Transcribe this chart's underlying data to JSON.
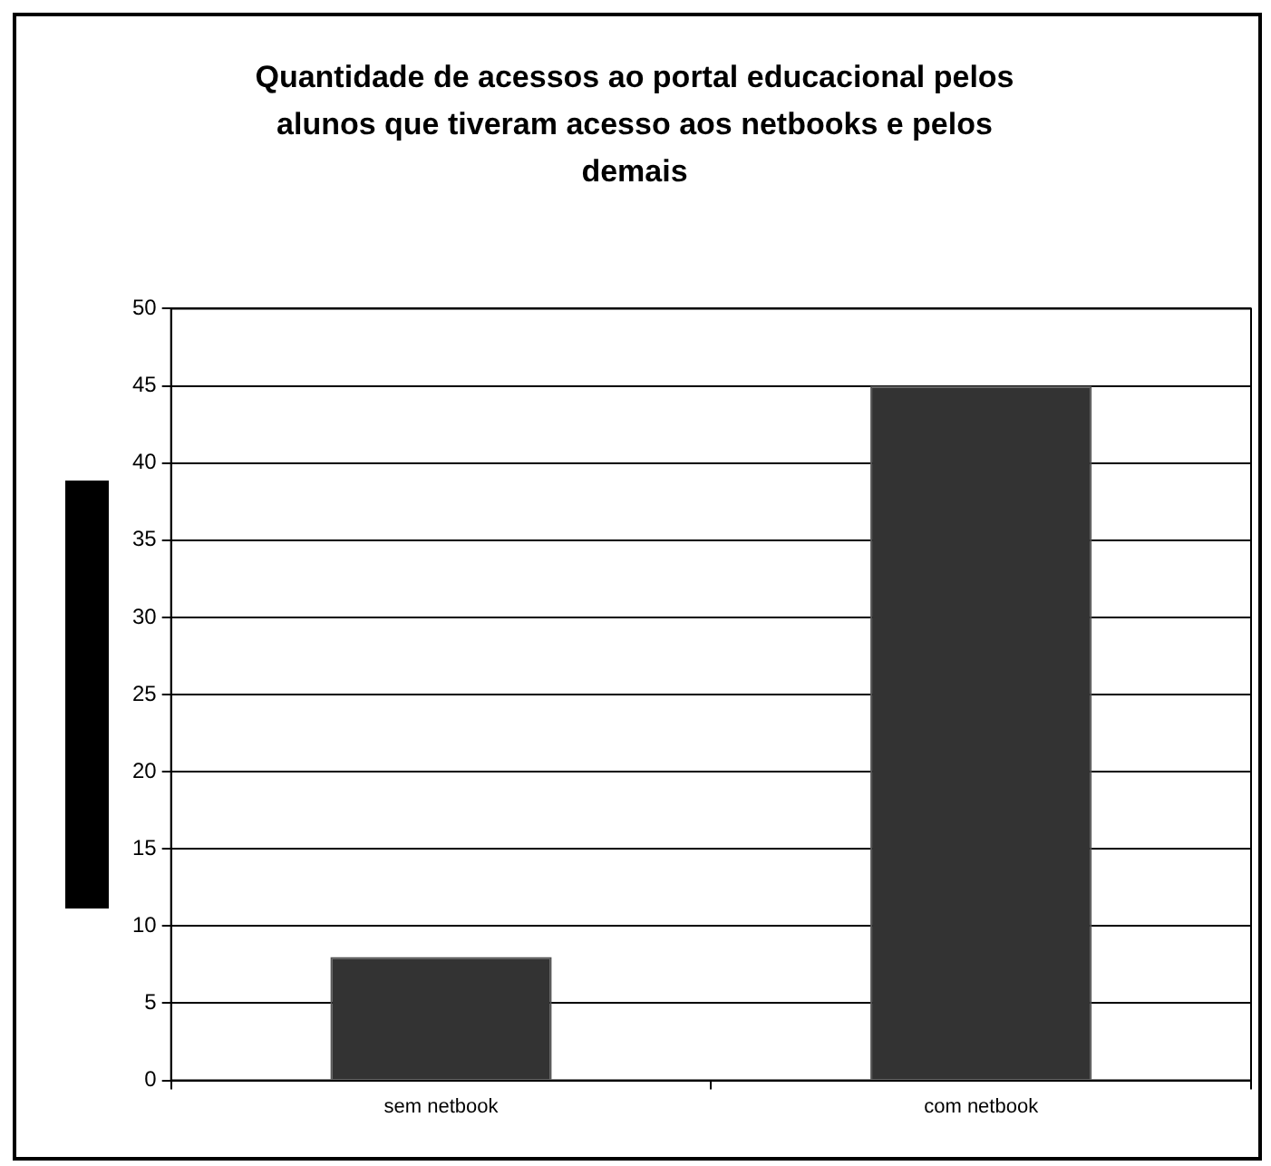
{
  "chart_data": {
    "type": "bar",
    "title": "Quantidade de acessos ao portal educacional pelos alunos que tiveram acesso aos netbooks e pelos demais",
    "categories": [
      "sem netbook",
      "com netbook"
    ],
    "values": [
      8,
      45
    ],
    "color": "#333333",
    "ylim": [
      0,
      50
    ],
    "yticks": [
      0,
      5,
      10,
      15,
      20,
      25,
      30,
      35,
      40,
      45,
      50
    ],
    "grid": "y",
    "legend": false
  }
}
